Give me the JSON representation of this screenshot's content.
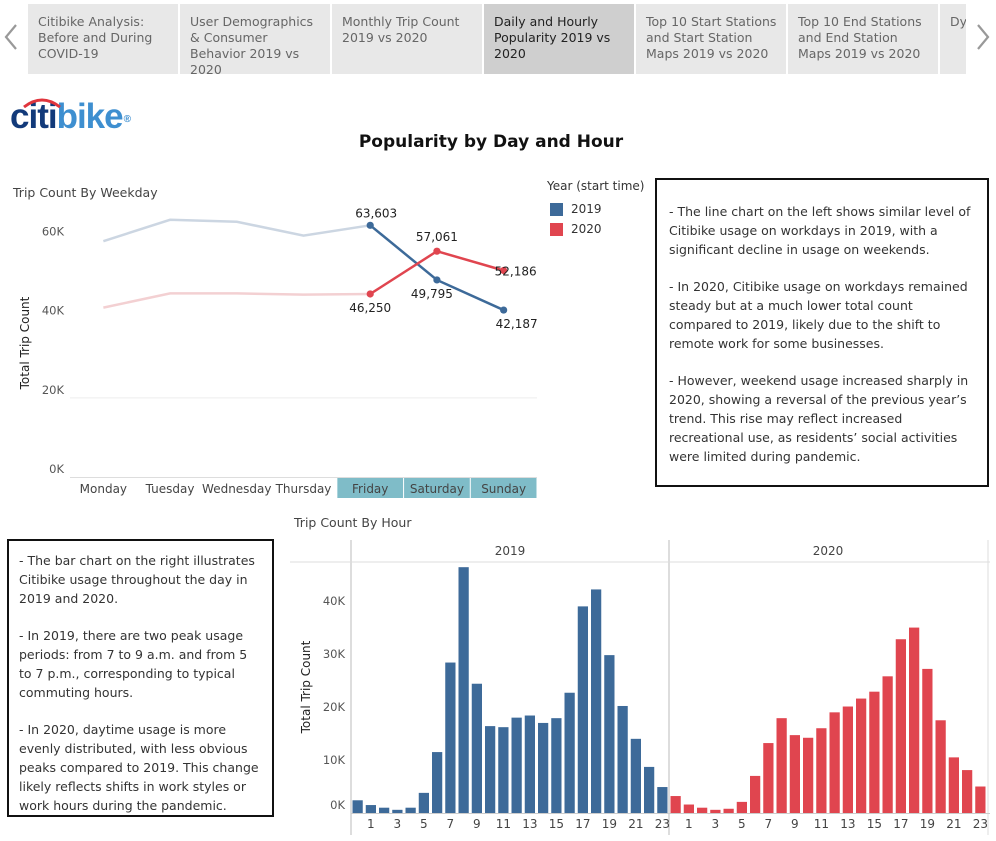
{
  "nav": {
    "tabs": [
      {
        "label": "Citibike Analysis: Before and During COVID-19",
        "active": false
      },
      {
        "label": "User Demographics & Consumer Behavior 2019 vs 2020",
        "active": false
      },
      {
        "label": "Monthly Trip Count 2019 vs 2020",
        "active": false
      },
      {
        "label": "Daily and Hourly Popularity 2019 vs 2020",
        "active": true
      },
      {
        "label": "Top 10 Start Stations and Start Station Maps 2019 vs 2020",
        "active": false
      },
      {
        "label": "Top 10 End Stations and End Station  Maps 2019 vs 2020",
        "active": false
      },
      {
        "label": "Dy Sta",
        "active": false
      }
    ],
    "prev_icon": "chevron-left-icon",
    "next_icon": "chevron-right-icon"
  },
  "logo": {
    "part1": "citi",
    "part2": "bike",
    "mark": "®"
  },
  "page_title": "Popularity by Day and Hour",
  "legend": {
    "title": "Year (start time)",
    "items": [
      {
        "label": "2019",
        "color": "#3d6a99"
      },
      {
        "label": "2020",
        "color": "#e0454f"
      }
    ]
  },
  "notes": {
    "right": [
      "- The line chart on the left shows similar level of Citibike usage on workdays in 2019, with a significant decline in usage on weekends.",
      "- In 2020, Citibike usage on workdays remained steady but at a much lower  total count compared to 2019, likely due to the shift to remote work for some businesses.",
      "- However, weekend usage increased sharply in 2020, showing a reversal of the previous year’s trend. This rise may reflect increased recreational use, as residents’ social activities were limited during pandemic."
    ],
    "left": [
      "- The bar chart on the right illustrates Citibike usage throughout the day in 2019 and 2020.",
      "- In 2019, there are two peak usage periods: from 7 to 9 a.m. and from 5 to 7 p.m., corresponding to typical commuting hours.",
      "- In 2020, daytime usage is more evenly distributed, with less obvious peaks compared to 2019. This change likely reflects shifts in work styles or work hours during the pandemic."
    ]
  },
  "chart_data": [
    {
      "type": "line",
      "title": "Trip Count By Weekday",
      "ylabel": "Total Trip Count",
      "xlabel": "",
      "ylim": [
        0,
        70000
      ],
      "yticks": [
        0,
        20000,
        40000,
        60000
      ],
      "ytick_labels": [
        "0K",
        "20K",
        "40K",
        "60K"
      ],
      "categories": [
        "Monday",
        "Tuesday",
        "Wednesday",
        "Thursday",
        "Friday",
        "Saturday",
        "Sunday"
      ],
      "highlighted_categories": [
        "Friday",
        "Saturday",
        "Sunday"
      ],
      "highlight_color": "#7fbcc8",
      "series": [
        {
          "name": "2019",
          "color": "#3d6a99",
          "faded_color": "#ccd6e2",
          "values": [
            59600,
            65000,
            64500,
            61000,
            63603,
            49795,
            42187
          ]
        },
        {
          "name": "2020",
          "color": "#e0454f",
          "faded_color": "#f3d0d2",
          "values": [
            42800,
            46400,
            46400,
            46100,
            46250,
            57061,
            52186
          ]
        }
      ],
      "data_labels": [
        {
          "series": "2019",
          "category": "Friday",
          "text": "63,603"
        },
        {
          "series": "2019",
          "category": "Saturday",
          "text": "49,795"
        },
        {
          "series": "2019",
          "category": "Sunday",
          "text": "42,187"
        },
        {
          "series": "2020",
          "category": "Friday",
          "text": "46,250"
        },
        {
          "series": "2020",
          "category": "Saturday",
          "text": "57,061"
        },
        {
          "series": "2020",
          "category": "Sunday",
          "text": "52,186"
        }
      ]
    },
    {
      "type": "bar",
      "title": "Trip Count By Hour",
      "ylabel": "Total Trip Count",
      "ylim": [
        0,
        47000
      ],
      "yticks": [
        0,
        10000,
        20000,
        30000,
        40000
      ],
      "ytick_labels": [
        "0K",
        "10K",
        "20K",
        "30K",
        "40K"
      ],
      "x": [
        0,
        1,
        2,
        3,
        4,
        5,
        6,
        7,
        8,
        9,
        10,
        11,
        12,
        13,
        14,
        15,
        16,
        17,
        18,
        19,
        20,
        21,
        22,
        23
      ],
      "xtick_labels": [
        "1",
        "3",
        "5",
        "7",
        "9",
        "11",
        "13",
        "15",
        "17",
        "19",
        "21",
        "23"
      ],
      "panels": [
        {
          "name": "2019",
          "color": "#3d6a99",
          "values": [
            2400,
            1500,
            1000,
            600,
            1000,
            3800,
            11500,
            28400,
            46400,
            24400,
            16400,
            16200,
            18000,
            18400,
            17000,
            17900,
            22700,
            39000,
            42200,
            29800,
            20200,
            14000,
            8700,
            4900
          ]
        },
        {
          "name": "2020",
          "color": "#e0454f",
          "values": [
            3200,
            1600,
            1000,
            600,
            800,
            2100,
            7000,
            13200,
            17900,
            14700,
            14200,
            16000,
            19000,
            20100,
            21600,
            22900,
            25800,
            32800,
            35000,
            27200,
            17500,
            10500,
            8100,
            5000
          ]
        }
      ]
    }
  ]
}
